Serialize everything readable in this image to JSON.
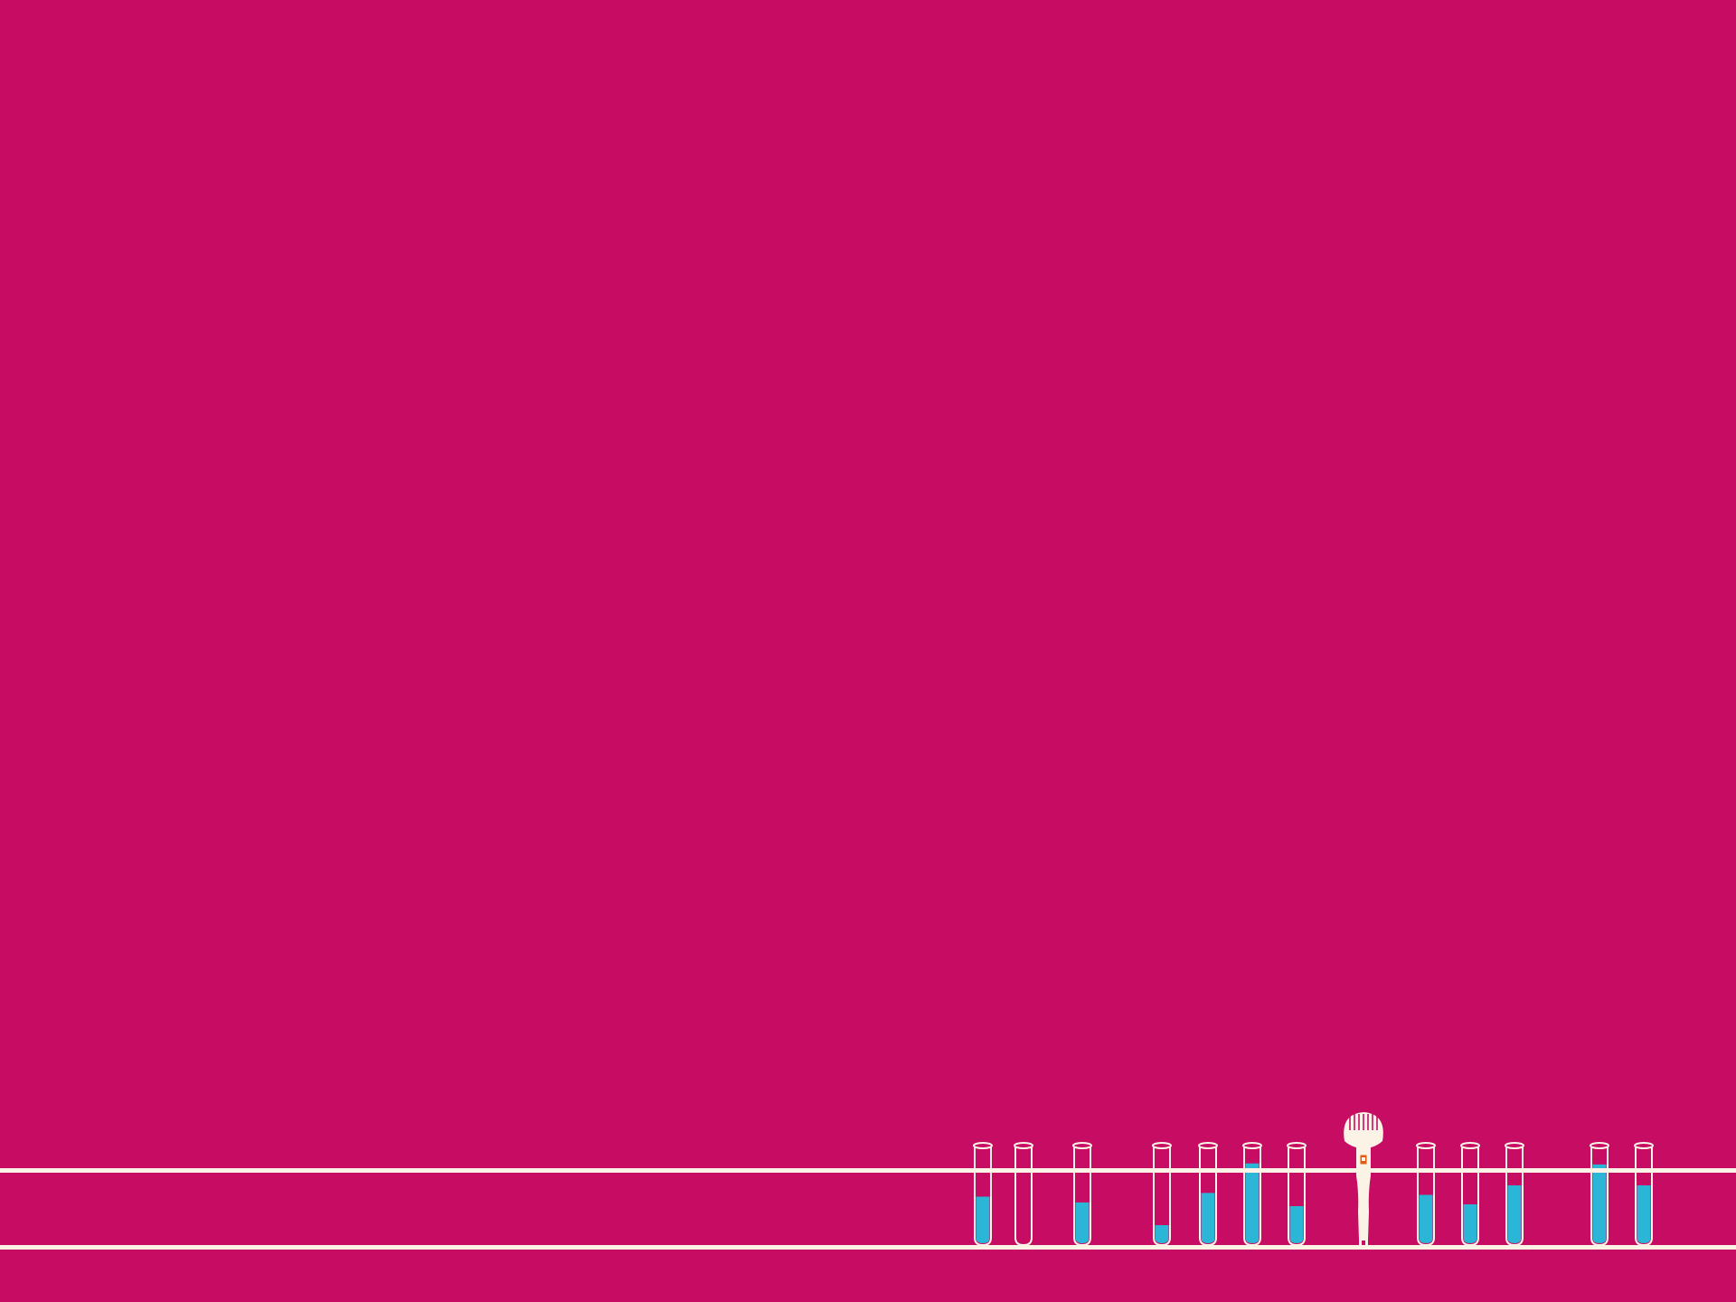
{
  "colors": {
    "background": "#c70c64",
    "line": "#fbf4e6",
    "liquid": "#2bb6d8",
    "character": "#fbf4e6",
    "character_accent": "#e55a12"
  },
  "tubes": [
    {
      "name": "tube-1",
      "fill": 0.49
    },
    {
      "name": "tube-2",
      "fill": 0.0
    },
    {
      "name": "tube-3",
      "fill": 0.43
    },
    {
      "name": "tube-4",
      "fill": 0.19
    },
    {
      "name": "tube-5",
      "fill": 0.53
    },
    {
      "name": "tube-6",
      "fill": 0.84
    },
    {
      "name": "tube-7",
      "fill": 0.39
    },
    {
      "name": "tube-8",
      "fill": 0.51
    },
    {
      "name": "tube-9",
      "fill": 0.41
    },
    {
      "name": "tube-10",
      "fill": 0.61
    },
    {
      "name": "tube-11",
      "fill": 0.83
    },
    {
      "name": "tube-12",
      "fill": 0.61
    }
  ],
  "character": {
    "icon": "pipette-creature-icon"
  }
}
